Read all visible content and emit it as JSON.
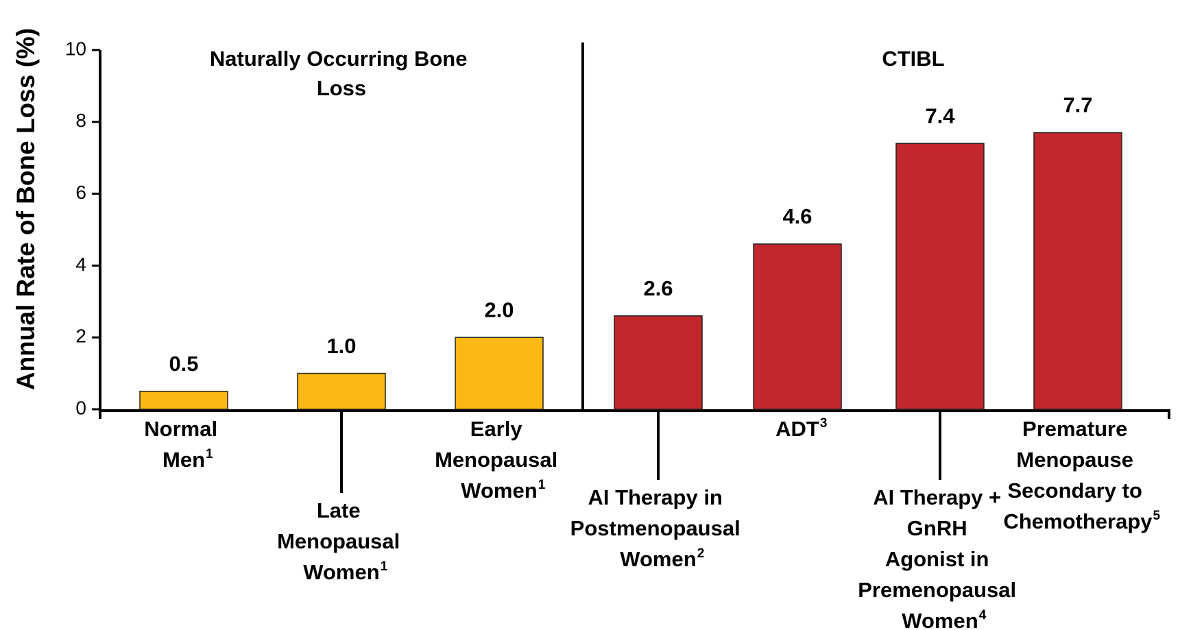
{
  "chart_data": {
    "type": "bar",
    "y_label": "Annual Rate of Bone Loss (%)",
    "categories": [
      "Normal Men",
      "Late Menopausal Women",
      "Early Menopausal Women",
      "AI Therapy in Postmenopausal Women",
      "ADT",
      "AI Therapy + GnRH Agonist in Premenopausal Women",
      "Premature Menopause Secondary to Chemotherapy"
    ],
    "category_notes": [
      "1",
      "1",
      "1",
      "2",
      "3",
      "4",
      "5"
    ],
    "values": [
      0.5,
      1.0,
      2.0,
      2.6,
      4.6,
      7.4,
      7.7
    ],
    "value_labels": [
      "0.5",
      "1.0",
      "2.0",
      "2.6",
      "4.6",
      "7.4",
      "7.7"
    ],
    "colors": [
      "#FDB913",
      "#FDB913",
      "#FDB913",
      "#C1272D",
      "#C1272D",
      "#C1272D",
      "#C1272D"
    ],
    "groups": [
      "Naturally Occurring Bone Loss",
      "CTIBL"
    ],
    "ylim": [
      0,
      10
    ],
    "yticks": [
      0,
      2,
      4,
      6,
      8,
      10
    ],
    "grid": false
  }
}
